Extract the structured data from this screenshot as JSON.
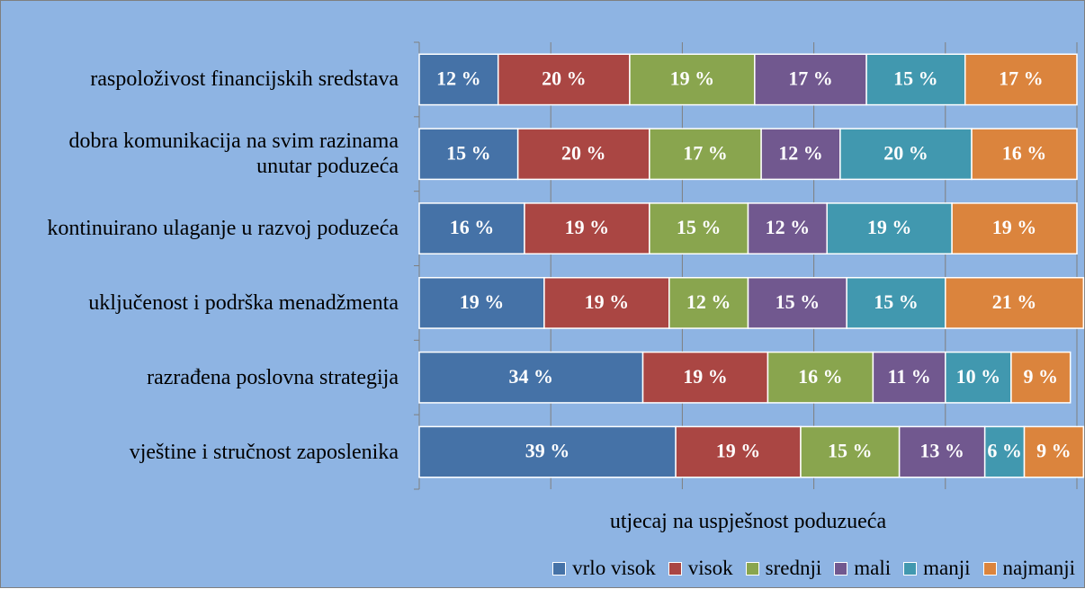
{
  "chart_data": {
    "type": "stacked-barh",
    "categories": [
      "raspoloživost financijskih sredstava",
      "dobra komunikacija na svim razinama unutar poduzeća",
      "kontinuirano ulaganje u razvoj poduzeća",
      "uključenost i podrška menadžmenta",
      "razrađena poslovna strategija",
      "vještine i stručnost zaposlenika"
    ],
    "series": [
      {
        "name": "vrlo visok",
        "color": "#4572a7",
        "values": [
          12,
          15,
          16,
          19,
          34,
          39
        ],
        "value_labels": [
          "12 %",
          "15 %",
          "16 %",
          "19 %",
          "34 %",
          "39 %"
        ]
      },
      {
        "name": "visok",
        "color": "#aa4643",
        "values": [
          20,
          20,
          19,
          19,
          19,
          19
        ],
        "value_labels": [
          "20 %",
          "20 %",
          "19 %",
          "19 %",
          "19 %",
          "19 %"
        ]
      },
      {
        "name": "srednji",
        "color": "#89a54e",
        "values": [
          19,
          17,
          15,
          12,
          16,
          15
        ],
        "value_labels": [
          "19 %",
          "17 %",
          "15 %",
          "12 %",
          "16 %",
          "15 %"
        ]
      },
      {
        "name": "mali",
        "color": "#71588f",
        "values": [
          17,
          12,
          12,
          15,
          11,
          13
        ],
        "value_labels": [
          "17 %",
          "12 %",
          "12 %",
          "15 %",
          "11 %",
          "13 %"
        ]
      },
      {
        "name": "manji",
        "color": "#4198af",
        "values": [
          15,
          20,
          19,
          15,
          10,
          6
        ],
        "value_labels": [
          "15 %",
          "20 %",
          "19 %",
          "15 %",
          "10 %",
          "6 %"
        ]
      },
      {
        "name": "najmanji",
        "color": "#db843d",
        "values": [
          17,
          16,
          19,
          21,
          9,
          9
        ],
        "value_labels": [
          "17 %",
          "16 %",
          "19 %",
          "21 %",
          "9 %",
          "9 %"
        ]
      }
    ],
    "xlabel": "utjecaj na uspješnost poduzueća",
    "xlim": [
      0,
      100
    ],
    "xticks": [
      0,
      20,
      40,
      60,
      80,
      100
    ],
    "grid": true,
    "legend": "bottom-right"
  }
}
